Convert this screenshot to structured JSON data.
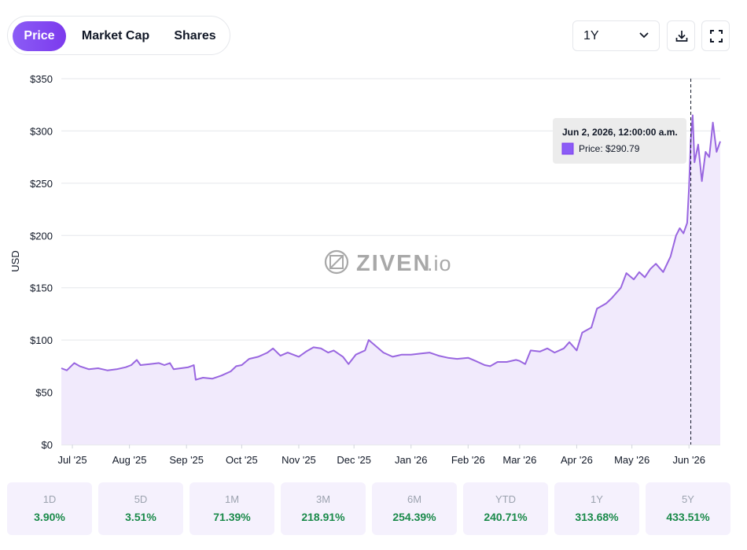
{
  "tabs": [
    {
      "label": "Price",
      "active": true
    },
    {
      "label": "Market Cap",
      "active": false
    },
    {
      "label": "Shares",
      "active": false
    }
  ],
  "range_select": {
    "value": "1Y"
  },
  "toolbar": {
    "download_icon": "download-icon",
    "fullscreen_icon": "fullscreen-icon"
  },
  "watermark": {
    "brand": "ZIVEN",
    "suffix": ".io"
  },
  "tooltip": {
    "date": "Jun 2, 2026, 12:00:00 a.m.",
    "label": "Price: $290.79"
  },
  "colors": {
    "accent": "#8b5cf6",
    "line": "#9966e0",
    "fill": "#f1eafc",
    "positive": "#1a8a4a"
  },
  "stats": [
    {
      "label": "1D",
      "value": "3.90%"
    },
    {
      "label": "5D",
      "value": "3.51%"
    },
    {
      "label": "1M",
      "value": "71.39%"
    },
    {
      "label": "3M",
      "value": "218.91%"
    },
    {
      "label": "6M",
      "value": "254.39%"
    },
    {
      "label": "YTD",
      "value": "240.71%"
    },
    {
      "label": "1Y",
      "value": "313.68%"
    },
    {
      "label": "5Y",
      "value": "433.51%"
    }
  ],
  "chart_data": {
    "type": "area",
    "ylabel": "USD",
    "ylim": [
      0,
      350
    ],
    "y_ticks": [
      {
        "value": 0,
        "label": "$0"
      },
      {
        "value": 50,
        "label": "$50"
      },
      {
        "value": 100,
        "label": "$100"
      },
      {
        "value": 150,
        "label": "$150"
      },
      {
        "value": 200,
        "label": "$200"
      },
      {
        "value": 250,
        "label": "$250"
      },
      {
        "value": 300,
        "label": "$300"
      },
      {
        "value": 350,
        "label": "$350"
      }
    ],
    "x_range": [
      "2025-06-25",
      "2026-06-18"
    ],
    "x_ticks": [
      {
        "date": "2025-07-01",
        "label": "Jul '25"
      },
      {
        "date": "2025-08-01",
        "label": "Aug '25"
      },
      {
        "date": "2025-09-01",
        "label": "Sep '25"
      },
      {
        "date": "2025-10-01",
        "label": "Oct '25"
      },
      {
        "date": "2025-11-01",
        "label": "Nov '25"
      },
      {
        "date": "2025-12-01",
        "label": "Dec '25"
      },
      {
        "date": "2026-01-01",
        "label": "Jan '26"
      },
      {
        "date": "2026-02-01",
        "label": "Feb '26"
      },
      {
        "date": "2026-03-01",
        "label": "Mar '26"
      },
      {
        "date": "2026-04-01",
        "label": "Apr '26"
      },
      {
        "date": "2026-05-01",
        "label": "May '26"
      },
      {
        "date": "2026-06-01",
        "label": "Jun '26"
      }
    ],
    "grid": true,
    "highlight": {
      "date": "2026-06-02",
      "value": 290.79
    },
    "series": [
      {
        "name": "Price",
        "points": [
          [
            "2025-06-25",
            73
          ],
          [
            "2025-06-28",
            71
          ],
          [
            "2025-07-02",
            78
          ],
          [
            "2025-07-05",
            75
          ],
          [
            "2025-07-10",
            72
          ],
          [
            "2025-07-15",
            73
          ],
          [
            "2025-07-20",
            71
          ],
          [
            "2025-07-25",
            72
          ],
          [
            "2025-07-30",
            74
          ],
          [
            "2025-08-02",
            76
          ],
          [
            "2025-08-05",
            81
          ],
          [
            "2025-08-07",
            76
          ],
          [
            "2025-08-12",
            77
          ],
          [
            "2025-08-17",
            78
          ],
          [
            "2025-08-20",
            76
          ],
          [
            "2025-08-23",
            78
          ],
          [
            "2025-08-25",
            72
          ],
          [
            "2025-08-29",
            73
          ],
          [
            "2025-09-02",
            74
          ],
          [
            "2025-09-05",
            76
          ],
          [
            "2025-09-06",
            62
          ],
          [
            "2025-09-10",
            64
          ],
          [
            "2025-09-15",
            63
          ],
          [
            "2025-09-20",
            66
          ],
          [
            "2025-09-25",
            70
          ],
          [
            "2025-09-28",
            75
          ],
          [
            "2025-10-01",
            76
          ],
          [
            "2025-10-05",
            82
          ],
          [
            "2025-10-10",
            84
          ],
          [
            "2025-10-15",
            88
          ],
          [
            "2025-10-18",
            92
          ],
          [
            "2025-10-22",
            85
          ],
          [
            "2025-10-26",
            88
          ],
          [
            "2025-11-01",
            84
          ],
          [
            "2025-11-05",
            89
          ],
          [
            "2025-11-09",
            93
          ],
          [
            "2025-11-13",
            92
          ],
          [
            "2025-11-17",
            88
          ],
          [
            "2025-11-20",
            90
          ],
          [
            "2025-11-25",
            84
          ],
          [
            "2025-11-28",
            77
          ],
          [
            "2025-12-02",
            86
          ],
          [
            "2025-12-07",
            90
          ],
          [
            "2025-12-09",
            100
          ],
          [
            "2025-12-13",
            94
          ],
          [
            "2025-12-17",
            88
          ],
          [
            "2025-12-22",
            84
          ],
          [
            "2025-12-27",
            86
          ],
          [
            "2026-01-01",
            86
          ],
          [
            "2026-01-06",
            87
          ],
          [
            "2026-01-11",
            88
          ],
          [
            "2026-01-16",
            85
          ],
          [
            "2026-01-21",
            83
          ],
          [
            "2026-01-26",
            82
          ],
          [
            "2026-02-01",
            83
          ],
          [
            "2026-02-05",
            80
          ],
          [
            "2026-02-10",
            76
          ],
          [
            "2026-02-13",
            75
          ],
          [
            "2026-02-17",
            79
          ],
          [
            "2026-02-22",
            79
          ],
          [
            "2026-02-27",
            81
          ],
          [
            "2026-03-01",
            80
          ],
          [
            "2026-03-04",
            77
          ],
          [
            "2026-03-07",
            90
          ],
          [
            "2026-03-12",
            89
          ],
          [
            "2026-03-16",
            92
          ],
          [
            "2026-03-20",
            88
          ],
          [
            "2026-03-25",
            92
          ],
          [
            "2026-03-28",
            98
          ],
          [
            "2026-04-01",
            90
          ],
          [
            "2026-04-04",
            107
          ],
          [
            "2026-04-09",
            112
          ],
          [
            "2026-04-12",
            130
          ],
          [
            "2026-04-17",
            135
          ],
          [
            "2026-04-20",
            140
          ],
          [
            "2026-04-25",
            150
          ],
          [
            "2026-04-28",
            164
          ],
          [
            "2026-05-02",
            158
          ],
          [
            "2026-05-05",
            165
          ],
          [
            "2026-05-08",
            160
          ],
          [
            "2026-05-11",
            168
          ],
          [
            "2026-05-14",
            173
          ],
          [
            "2026-05-18",
            165
          ],
          [
            "2026-05-22",
            180
          ],
          [
            "2026-05-25",
            200
          ],
          [
            "2026-05-27",
            207
          ],
          [
            "2026-05-29",
            202
          ],
          [
            "2026-05-31",
            212
          ],
          [
            "2026-06-01",
            245
          ],
          [
            "2026-06-02",
            290.79
          ],
          [
            "2026-06-03",
            315
          ],
          [
            "2026-06-04",
            270
          ],
          [
            "2026-06-06",
            287
          ],
          [
            "2026-06-08",
            252
          ],
          [
            "2026-06-10",
            280
          ],
          [
            "2026-06-12",
            275
          ],
          [
            "2026-06-14",
            308
          ],
          [
            "2026-06-16",
            280
          ],
          [
            "2026-06-18",
            290
          ]
        ]
      }
    ]
  }
}
